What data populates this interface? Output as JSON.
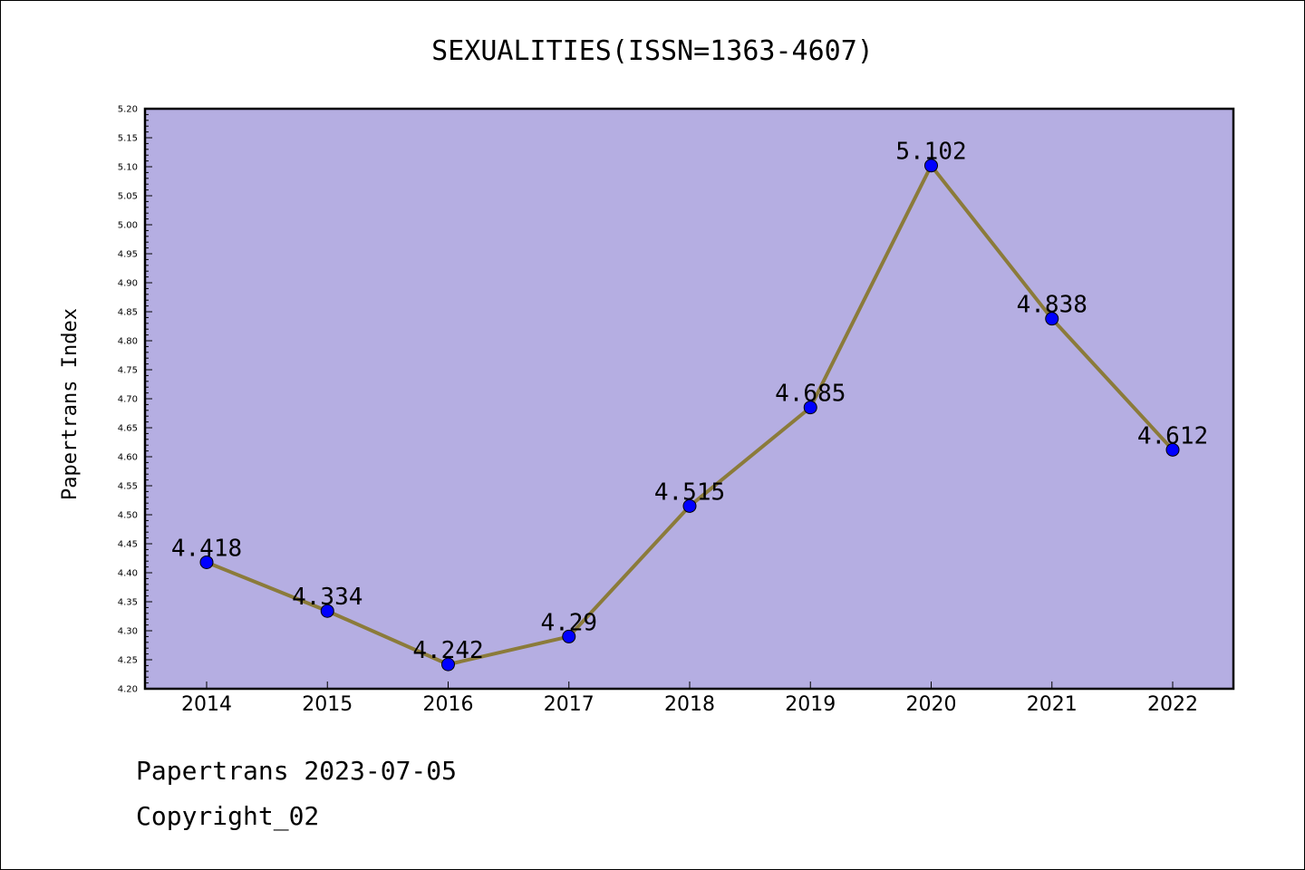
{
  "chart_data": {
    "type": "line",
    "title": "SEXUALITIES(ISSN=1363-4607)",
    "ylabel": "Papertrans Index",
    "xlabel": "",
    "x": [
      "2014",
      "2015",
      "2016",
      "2017",
      "2018",
      "2019",
      "2020",
      "2021",
      "2022"
    ],
    "series": [
      {
        "values": [
          4.418,
          4.334,
          4.242,
          4.29,
          4.515,
          4.685,
          5.102,
          4.838,
          4.612
        ],
        "labels": [
          "4.418",
          "4.334",
          "4.242",
          "4.29",
          "4.515",
          "4.685",
          "5.102",
          "4.838",
          "4.612"
        ]
      }
    ],
    "ylim": [
      4.2,
      5.2
    ],
    "yticks": [
      "4.20",
      "4.25",
      "4.30",
      "4.35",
      "4.40",
      "4.45",
      "4.50",
      "4.55",
      "4.60",
      "4.65",
      "4.70",
      "4.75",
      "4.80",
      "4.85",
      "4.90",
      "4.95",
      "5.00",
      "5.05",
      "5.10",
      "5.15",
      "5.20"
    ],
    "colors": {
      "plot_background": "#b5aee2",
      "line": "#8b7b3a",
      "marker": "#0000ff"
    },
    "grid": false
  },
  "footer": {
    "line1": "Papertrans 2023-07-05",
    "line2": "Copyright_02"
  }
}
